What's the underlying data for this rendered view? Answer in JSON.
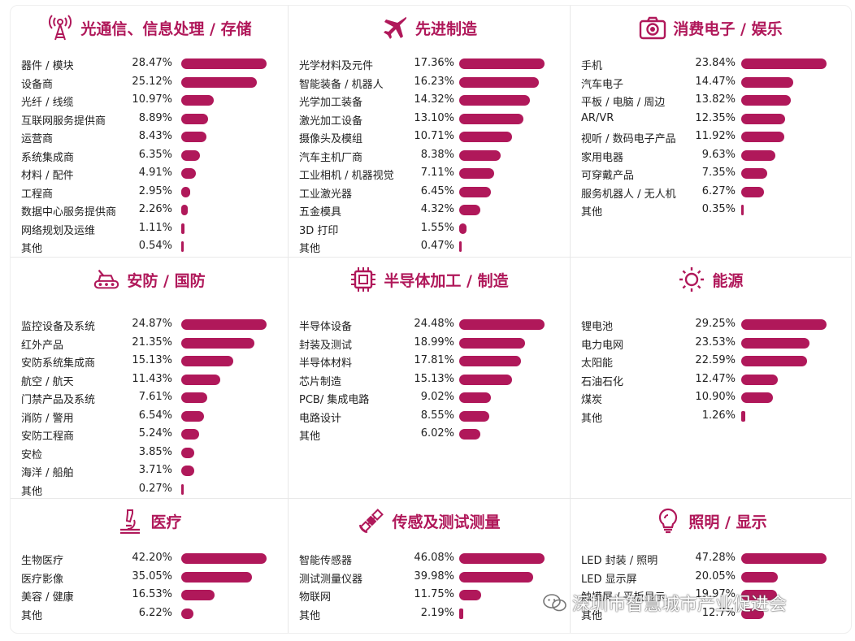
{
  "colors": {
    "accent": "#b0185a",
    "text": "#222222"
  },
  "watermark": {
    "text": "深圳市智慧城市产业促进会",
    "icon": "wechat-icon"
  },
  "chart_data": [
    {
      "type": "bar",
      "icon": "antenna-tower-icon",
      "title": "光通信、信息处理 / 存储",
      "categories": [
        "器件 / 模块",
        "设备商",
        "光纤 / 线缆",
        "互联网服务提供商",
        "运营商",
        "系统集成商",
        "材料 / 配件",
        "工程商",
        "数据中心服务提供商",
        "网络规划及运维",
        "其他"
      ],
      "values": [
        28.47,
        25.12,
        10.97,
        8.89,
        8.43,
        6.35,
        4.91,
        2.95,
        2.26,
        1.11,
        0.54
      ],
      "labels": [
        "28.47%",
        "25.12%",
        "10.97%",
        "8.89%",
        "8.43%",
        "6.35%",
        "4.91%",
        "2.95%",
        "2.26%",
        "1.11%",
        "0.54%"
      ]
    },
    {
      "type": "bar",
      "icon": "airplane-icon",
      "title": "先进制造",
      "categories": [
        "光学材料及元件",
        "智能装备 / 机器人",
        "光学加工装备",
        "激光加工设备",
        "摄像头及模组",
        "汽车主机厂商",
        "工业相机 / 机器视觉",
        "工业激光器",
        "五金模具",
        "3D 打印",
        "其他"
      ],
      "values": [
        17.36,
        16.23,
        14.32,
        13.1,
        10.71,
        8.38,
        7.11,
        6.45,
        4.32,
        1.55,
        0.47
      ],
      "labels": [
        "17.36%",
        "16.23%",
        "14.32%",
        "13.10%",
        "10.71%",
        "8.38%",
        "7.11%",
        "6.45%",
        "4.32%",
        "1.55%",
        "0.47%"
      ]
    },
    {
      "type": "bar",
      "icon": "camera-icon",
      "title": "消费电子 / 娱乐",
      "categories": [
        "手机",
        "汽车电子",
        "平板 / 电脑 / 周边",
        "AR/VR",
        "视听 / 数码电子产品",
        "家用电器",
        "可穿戴产品",
        "服务机器人 / 无人机",
        "其他"
      ],
      "values": [
        23.84,
        14.47,
        13.82,
        12.35,
        11.92,
        9.63,
        7.35,
        6.27,
        0.35
      ],
      "labels": [
        "23.84%",
        "14.47%",
        "13.82%",
        "12.35%",
        "11.92%",
        "9.63%",
        "7.35%",
        "6.27%",
        "0.35%"
      ]
    },
    {
      "type": "bar",
      "icon": "tank-icon",
      "title": "安防 / 国防",
      "categories": [
        "监控设备及系统",
        "红外产品",
        "安防系统集成商",
        "航空 / 航天",
        "门禁产品及系统",
        "消防 / 警用",
        "安防工程商",
        "安检",
        "海洋 / 船舶",
        "其他"
      ],
      "values": [
        24.87,
        21.35,
        15.13,
        11.43,
        7.61,
        6.54,
        5.24,
        3.85,
        3.71,
        0.27
      ],
      "labels": [
        "24.87%",
        "21.35%",
        "15.13%",
        "11.43%",
        "7.61%",
        "6.54%",
        "5.24%",
        "3.85%",
        "3.71%",
        "0.27%"
      ]
    },
    {
      "type": "bar",
      "icon": "chip-icon",
      "title": "半导体加工 / 制造",
      "categories": [
        "半导体设备",
        "封装及测试",
        "半导体材料",
        "芯片制造",
        "PCB/ 集成电路",
        "电路设计",
        "其他"
      ],
      "values": [
        24.48,
        18.99,
        17.81,
        15.13,
        9.02,
        8.55,
        6.02
      ],
      "labels": [
        "24.48%",
        "18.99%",
        "17.81%",
        "15.13%",
        "9.02%",
        "8.55%",
        "6.02%"
      ]
    },
    {
      "type": "bar",
      "icon": "sun-icon",
      "title": "能源",
      "categories": [
        "锂电池",
        "电力电网",
        "太阳能",
        "石油石化",
        "煤炭",
        "其他"
      ],
      "values": [
        29.25,
        23.53,
        22.59,
        12.47,
        10.9,
        1.26
      ],
      "labels": [
        "29.25%",
        "23.53%",
        "22.59%",
        "12.47%",
        "10.90%",
        "1.26%"
      ]
    },
    {
      "type": "bar",
      "icon": "microscope-icon",
      "title": "医疗",
      "categories": [
        "生物医疗",
        "医疗影像",
        "美容 / 健康",
        "其他"
      ],
      "values": [
        42.2,
        35.05,
        16.53,
        6.22
      ],
      "labels": [
        "42.20%",
        "35.05%",
        "16.53%",
        "6.22%"
      ]
    },
    {
      "type": "bar",
      "icon": "satellite-icon",
      "title": "传感及测试测量",
      "categories": [
        "智能传感器",
        "测试测量仪器",
        "物联网",
        "其他"
      ],
      "values": [
        46.08,
        39.98,
        11.75,
        2.19
      ],
      "labels": [
        "46.08%",
        "39.98%",
        "11.75%",
        "2.19%"
      ]
    },
    {
      "type": "bar",
      "icon": "lightbulb-icon",
      "title": "照明 / 显示",
      "categories": [
        "LED 封装 / 照明",
        "LED 显示屏",
        "触摸屏 / 平板显示",
        "其他"
      ],
      "values": [
        47.28,
        20.05,
        19.97,
        12.7
      ],
      "labels": [
        "47.28%",
        "20.05%",
        "19.97%",
        "12.7%"
      ]
    }
  ]
}
